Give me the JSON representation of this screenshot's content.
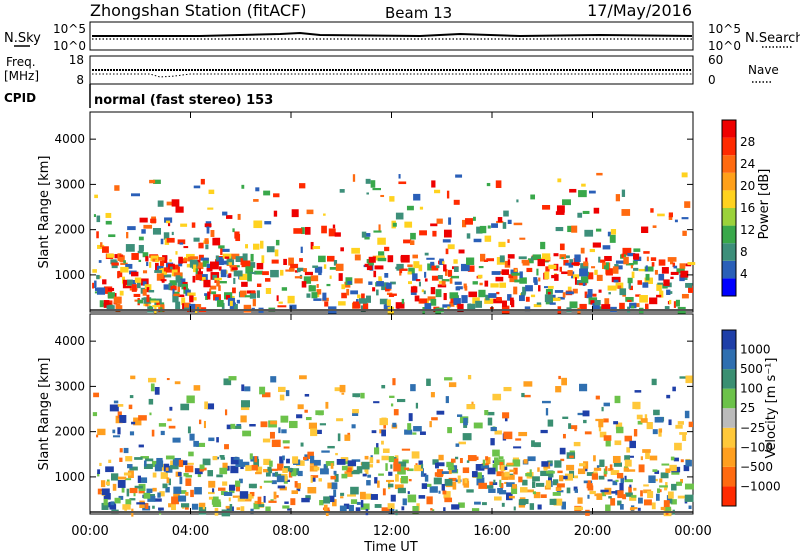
{
  "header": {
    "station": "Zhongshan Station (fitACF)",
    "beam": "Beam 13",
    "date": "17/May/2016",
    "cpid_label": "CPID",
    "cpid_value": "normal (fast stereo) 153"
  },
  "noise_panel": {
    "left_label": "N.Sky",
    "right_label": "N.Search",
    "left_ticks": [
      "10^5",
      "10^0"
    ],
    "right_ticks": [
      "10^5",
      "10^0"
    ]
  },
  "freq_panel": {
    "left_label_1": "Freq.",
    "left_label_2": "[MHz]",
    "right_label": "Nave",
    "left_ticks": [
      "18",
      "8"
    ],
    "right_ticks": [
      "60",
      "0"
    ]
  },
  "chart_data": [
    {
      "type": "heatmap",
      "ylabel": "Slant Range [km]",
      "ylim": [
        180,
        4600
      ],
      "yticks": [
        "1000",
        "2000",
        "3000",
        "4000"
      ],
      "colorbar": {
        "label": "Power [dB]",
        "ticks": [
          "4",
          "8",
          "12",
          "16",
          "20",
          "24",
          "28"
        ],
        "colors": [
          "#0000ff",
          "#2a5fb8",
          "#3d8f7a",
          "#39a84a",
          "#9bd23a",
          "#ffd21f",
          "#ffa01a",
          "#ff6a10",
          "#ff2a00",
          "#ee0000"
        ]
      }
    },
    {
      "type": "heatmap",
      "ylabel": "Slant Range [km]",
      "ylim": [
        180,
        4600
      ],
      "yticks": [
        "1000",
        "2000",
        "3000",
        "4000"
      ],
      "colorbar": {
        "label": "Velocity [m s⁻¹]",
        "ticks": [
          "1000",
          "500",
          "100",
          "25",
          "−25",
          "−100",
          "−500",
          "−1000"
        ],
        "colors": [
          "#1f3fa8",
          "#2f6fb0",
          "#3a8f72",
          "#6cc24a",
          "#bbbbbb",
          "#ffc83a",
          "#ff9f1f",
          "#ff6a10",
          "#ff2a00"
        ]
      }
    }
  ],
  "xaxis": {
    "label": "Time UT",
    "ticks": [
      "00:00",
      "04:00",
      "08:00",
      "12:00",
      "16:00",
      "20:00",
      "00:00"
    ]
  }
}
